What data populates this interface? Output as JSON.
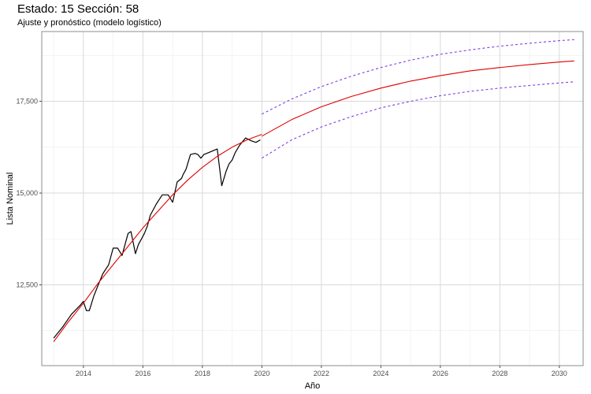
{
  "chart_data": {
    "type": "line",
    "title": "Estado: 15 Sección: 58",
    "subtitle": "Ajuste y pronóstico (modelo logístico)",
    "xlabel": "Año",
    "ylabel": "Lista Nominal",
    "xlim": [
      2012.6,
      2030.8
    ],
    "ylim": [
      10300,
      19400
    ],
    "x_ticks": [
      2014,
      2016,
      2018,
      2020,
      2022,
      2024,
      2026,
      2028,
      2030
    ],
    "x_tick_labels": [
      "2014",
      "2016",
      "2018",
      "2020",
      "2022",
      "2024",
      "2026",
      "2028",
      "2030"
    ],
    "y_ticks": [
      12500,
      15000,
      17500
    ],
    "y_tick_labels": [
      "12,500",
      "15,000",
      "17,500"
    ],
    "grid": true,
    "series": [
      {
        "style": "observed",
        "color": "#000000",
        "dash": "solid",
        "x": [
          2013.0,
          2013.3,
          2013.6,
          2013.9,
          2014.0,
          2014.1,
          2014.2,
          2014.35,
          2014.5,
          2014.65,
          2014.85,
          2015.0,
          2015.15,
          2015.3,
          2015.5,
          2015.6,
          2015.75,
          2015.85,
          2015.95,
          2016.05,
          2016.15,
          2016.25,
          2016.45,
          2016.65,
          2016.85,
          2017.0,
          2017.15,
          2017.3,
          2017.35,
          2017.45,
          2017.6,
          2017.75,
          2017.85,
          2017.95,
          2018.05,
          2018.2,
          2018.35,
          2018.5,
          2018.65,
          2018.8,
          2018.9,
          2019.0,
          2019.1,
          2019.25,
          2019.45,
          2019.65,
          2019.8,
          2019.95
        ],
        "y": [
          11050,
          11350,
          11700,
          11950,
          12050,
          11800,
          11800,
          12200,
          12500,
          12800,
          13050,
          13500,
          13500,
          13300,
          13900,
          13950,
          13350,
          13600,
          13750,
          13900,
          14100,
          14400,
          14700,
          14950,
          14950,
          14750,
          15300,
          15400,
          15500,
          15650,
          16050,
          16080,
          16050,
          15950,
          16050,
          16100,
          16150,
          16200,
          15200,
          15600,
          15800,
          15900,
          16100,
          16300,
          16500,
          16420,
          16380,
          16450
        ]
      },
      {
        "style": "fitted",
        "color": "#e00000",
        "dash": "solid",
        "x": [
          2013.0,
          2013.5,
          2014.0,
          2014.5,
          2015.0,
          2015.5,
          2016.0,
          2016.5,
          2017.0,
          2017.5,
          2018.0,
          2018.5,
          2019.0,
          2019.5,
          2020.0
        ],
        "y": [
          10950,
          11500,
          12000,
          12550,
          13050,
          13550,
          14050,
          14500,
          14950,
          15350,
          15700,
          16000,
          16250,
          16450,
          16600
        ]
      },
      {
        "style": "forecast",
        "color": "#e00000",
        "dash": "solid",
        "x": [
          2020.0,
          2021.0,
          2022.0,
          2023.0,
          2024.0,
          2025.0,
          2026.0,
          2027.0,
          2028.0,
          2029.0,
          2030.0,
          2030.5
        ],
        "y": [
          16550,
          17000,
          17350,
          17630,
          17860,
          18050,
          18200,
          18330,
          18420,
          18500,
          18570,
          18600
        ]
      },
      {
        "style": "upper-bound",
        "color": "#7b3fe4",
        "dash": "dashed",
        "x": [
          2020.0,
          2021.0,
          2022.0,
          2023.0,
          2024.0,
          2025.0,
          2026.0,
          2027.0,
          2028.0,
          2029.0,
          2030.0,
          2030.5
        ],
        "y": [
          17150,
          17560,
          17900,
          18180,
          18420,
          18620,
          18780,
          18900,
          19000,
          19080,
          19150,
          19180
        ]
      },
      {
        "style": "lower-bound",
        "color": "#7b3fe4",
        "dash": "dashed",
        "x": [
          2020.0,
          2021.0,
          2022.0,
          2023.0,
          2024.0,
          2025.0,
          2026.0,
          2027.0,
          2028.0,
          2029.0,
          2030.0,
          2030.5
        ],
        "y": [
          15950,
          16450,
          16800,
          17080,
          17320,
          17500,
          17650,
          17770,
          17860,
          17930,
          18000,
          18030
        ]
      }
    ],
    "colors": {
      "panel_border": "#8c8c8c",
      "grid_major": "#d9d9d9",
      "grid_minor": "#ececec"
    }
  }
}
